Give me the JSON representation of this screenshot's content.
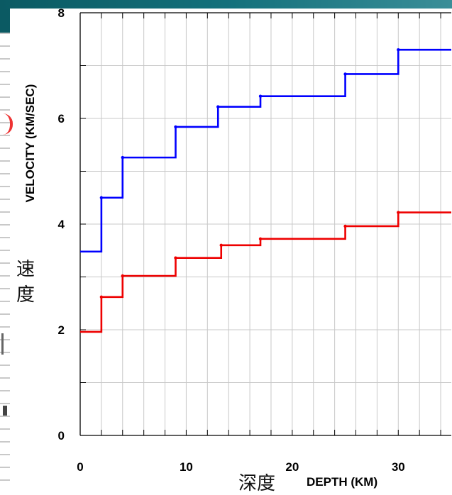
{
  "chart_data": {
    "type": "line",
    "line_style": "step",
    "xlabel": "DEPTH (KM)",
    "ylabel": "VELOCITY (KM/SEC)",
    "xlabel_cjk": "深度",
    "ylabel_cjk": "速度",
    "xlim": [
      0,
      35
    ],
    "ylim": [
      0,
      8
    ],
    "xticks": [
      0,
      10,
      20,
      30
    ],
    "yticks": [
      0,
      2,
      4,
      6,
      8
    ],
    "x_minor_step": 2,
    "y_minor_step": 1,
    "grid": true,
    "series": [
      {
        "color": "#0000ff",
        "x": [
          0,
          2,
          4,
          9,
          13,
          17,
          25,
          30,
          35
        ],
        "y": [
          3.48,
          4.5,
          5.26,
          5.84,
          6.22,
          6.42,
          6.84,
          7.3,
          7.3
        ]
      },
      {
        "color": "#ee0000",
        "x": [
          0,
          2,
          4,
          9,
          13.3,
          17,
          25,
          30,
          35
        ],
        "y": [
          1.96,
          2.62,
          3.02,
          3.36,
          3.6,
          3.72,
          3.96,
          4.22,
          4.22
        ]
      }
    ]
  }
}
